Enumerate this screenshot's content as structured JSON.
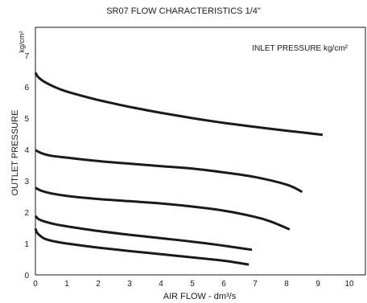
{
  "chart_data": {
    "type": "line",
    "title": "SR07 FLOW CHARACTERISTICS 1/4\"",
    "xlabel": "AIR FLOW - dm³/s",
    "ylabel": "OUTLET PRESSURE",
    "yunit": "kg/cm²",
    "annotation": "INLET PRESSURE kg/cm²",
    "xlim": [
      0,
      10
    ],
    "ylim": [
      0,
      8
    ],
    "xticks": [
      "0",
      "1",
      "2",
      "3",
      "4",
      "5",
      "6",
      "7",
      "8",
      "9",
      "10"
    ],
    "yticks": [
      "0",
      "1",
      "2",
      "3",
      "4",
      "5",
      "6",
      "7"
    ],
    "grid": false,
    "series": [
      {
        "x": [
          0,
          0.1,
          0.3,
          0.6,
          1,
          2,
          3,
          4,
          5,
          6,
          7,
          8,
          9.15
        ],
        "y": [
          6.45,
          6.3,
          6.15,
          6.0,
          5.85,
          5.58,
          5.36,
          5.17,
          5.0,
          4.85,
          4.72,
          4.6,
          4.47
        ]
      },
      {
        "x": [
          0,
          0.2,
          0.5,
          1,
          2,
          3,
          4,
          5,
          6,
          7,
          8,
          8.5
        ],
        "y": [
          3.98,
          3.88,
          3.8,
          3.74,
          3.63,
          3.55,
          3.47,
          3.39,
          3.27,
          3.12,
          2.88,
          2.65
        ]
      },
      {
        "x": [
          0,
          0.2,
          0.5,
          1,
          2,
          3,
          4,
          5,
          6,
          7,
          7.5,
          8.1
        ],
        "y": [
          2.78,
          2.68,
          2.6,
          2.52,
          2.42,
          2.35,
          2.28,
          2.18,
          2.05,
          1.85,
          1.7,
          1.45
        ]
      },
      {
        "x": [
          0,
          0.1,
          0.3,
          0.6,
          1,
          2,
          3,
          4,
          5,
          6,
          6.9
        ],
        "y": [
          1.88,
          1.78,
          1.7,
          1.62,
          1.55,
          1.4,
          1.28,
          1.17,
          1.06,
          0.93,
          0.8
        ]
      },
      {
        "x": [
          0,
          0.05,
          0.15,
          0.3,
          0.6,
          1,
          2,
          3,
          4,
          5,
          6,
          6.8
        ],
        "y": [
          1.48,
          1.35,
          1.25,
          1.15,
          1.07,
          1.0,
          0.87,
          0.76,
          0.66,
          0.56,
          0.45,
          0.33
        ]
      }
    ]
  }
}
